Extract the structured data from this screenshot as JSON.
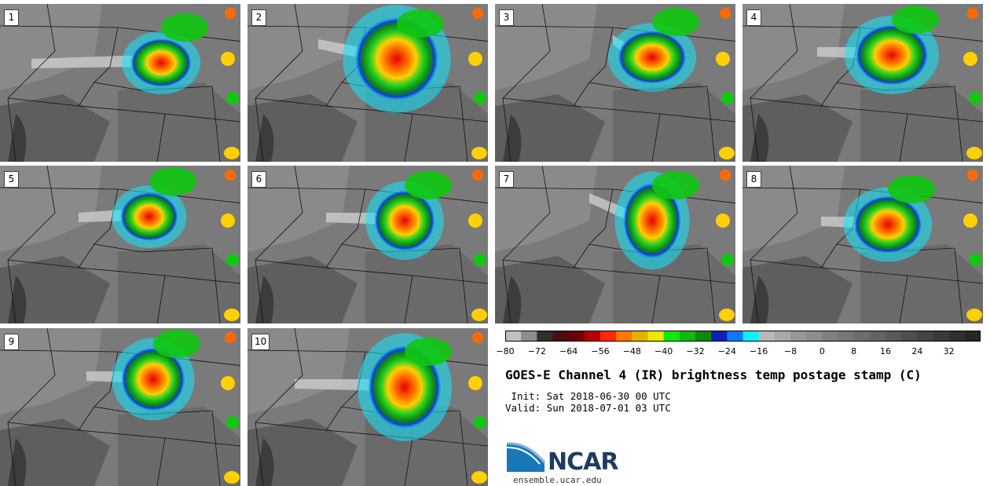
{
  "panels": [
    {
      "label": "1"
    },
    {
      "label": "2"
    },
    {
      "label": "3"
    },
    {
      "label": "4"
    },
    {
      "label": "5"
    },
    {
      "label": "6"
    },
    {
      "label": "7"
    },
    {
      "label": "8"
    },
    {
      "label": "9"
    },
    {
      "label": "10"
    }
  ],
  "colorbar": {
    "ticks": [
      "−80",
      "−72",
      "−64",
      "−56",
      "−48",
      "−40",
      "−32",
      "−24",
      "−16",
      "−8",
      "0",
      "8",
      "16",
      "24",
      "32"
    ],
    "colors": [
      "#c0c0c0",
      "#8c8c8c",
      "#303030",
      "#4a1010",
      "#6e0000",
      "#b40000",
      "#ff2800",
      "#ff7800",
      "#e0b400",
      "#e8e800",
      "#10e810",
      "#10b810",
      "#108810",
      "#1020b4",
      "#1078ff",
      "#10f0ff",
      "#b8b8b8",
      "#a8a8a8",
      "#989898",
      "#8c8c8c",
      "#808080",
      "#767676",
      "#6c6c6c",
      "#626262",
      "#585858",
      "#4e4e4e",
      "#444444",
      "#3a3a3a",
      "#303030",
      "#262626"
    ]
  },
  "title": "GOES-E Channel 4 (IR) brightness temp postage stamp (C)",
  "init": " Init: Sat 2018-06-30 00 UTC",
  "valid": "Valid: Sun 2018-07-01 03 UTC",
  "logo": {
    "text": "NCAR",
    "url": "ensemble.ucar.edu"
  }
}
